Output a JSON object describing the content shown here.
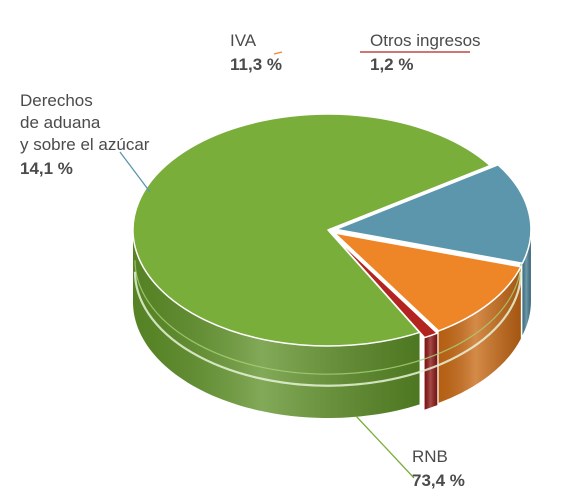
{
  "chart_data": {
    "type": "pie",
    "style": "3d",
    "title": "",
    "slices": [
      {
        "label": [
          "RNB"
        ],
        "value": 73.4,
        "display": "73,4 %",
        "color": "#7aae3a",
        "side_color": "#5f9128"
      },
      {
        "label": [
          "Derechos",
          "de aduana",
          "y sobre el azúcar"
        ],
        "value": 14.1,
        "display": "14,1 %",
        "color": "#5b96ad",
        "side_color": "#467d92"
      },
      {
        "label": [
          "IVA"
        ],
        "value": 11.3,
        "display": "11,3 %",
        "color": "#ee8526",
        "side_color": "#c96a15"
      },
      {
        "label": [
          "Otros ingresos"
        ],
        "value": 1.2,
        "display": "1,2 %",
        "color": "#b3231f",
        "side_color": "#8c1815"
      }
    ]
  }
}
